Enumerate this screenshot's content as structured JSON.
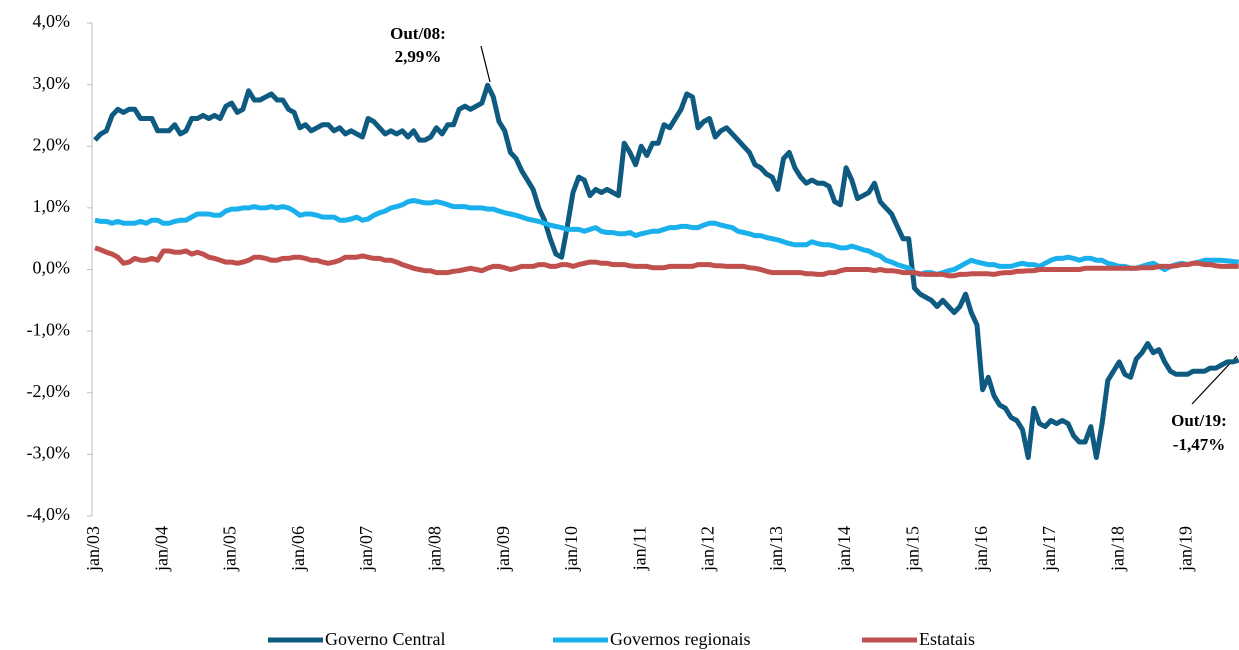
{
  "chart_data": {
    "type": "line",
    "categories": [
      "jan/03",
      null,
      null,
      null,
      null,
      null,
      null,
      null,
      null,
      null,
      null,
      null,
      "jan/04",
      null,
      null,
      null,
      null,
      null,
      null,
      null,
      null,
      null,
      null,
      null,
      "jan/05",
      null,
      null,
      null,
      null,
      null,
      null,
      null,
      null,
      null,
      null,
      null,
      "jan/06",
      null,
      null,
      null,
      null,
      null,
      null,
      null,
      null,
      null,
      null,
      null,
      "jan/07",
      null,
      null,
      null,
      null,
      null,
      null,
      null,
      null,
      null,
      null,
      null,
      "jan/08",
      null,
      null,
      null,
      null,
      null,
      null,
      null,
      null,
      null,
      null,
      null,
      "jan/09",
      null,
      null,
      null,
      null,
      null,
      null,
      null,
      null,
      null,
      null,
      null,
      "jan/10",
      null,
      null,
      null,
      null,
      null,
      null,
      null,
      null,
      null,
      null,
      null,
      "jan/11",
      null,
      null,
      null,
      null,
      null,
      null,
      null,
      null,
      null,
      null,
      null,
      "jan/12",
      null,
      null,
      null,
      null,
      null,
      null,
      null,
      null,
      null,
      null,
      null,
      "jan/13",
      null,
      null,
      null,
      null,
      null,
      null,
      null,
      null,
      null,
      null,
      null,
      "jan/14",
      null,
      null,
      null,
      null,
      null,
      null,
      null,
      null,
      null,
      null,
      null,
      "jan/15",
      null,
      null,
      null,
      null,
      null,
      null,
      null,
      null,
      null,
      null,
      null,
      "jan/16",
      null,
      null,
      null,
      null,
      null,
      null,
      null,
      null,
      null,
      null,
      null,
      "jan/17",
      null,
      null,
      null,
      null,
      null,
      null,
      null,
      null,
      null,
      null,
      null,
      "jan/18",
      null,
      null,
      null,
      null,
      null,
      null,
      null,
      null,
      null,
      null,
      null,
      "jan/19",
      null,
      null,
      null,
      null,
      null,
      null,
      null,
      null,
      null
    ],
    "series": [
      {
        "name": "Governo Central",
        "color": "#0e5a80",
        "values": [
          2.1,
          2.2,
          2.25,
          2.5,
          2.6,
          2.55,
          2.6,
          2.6,
          2.45,
          2.45,
          2.45,
          2.25,
          2.25,
          2.25,
          2.35,
          2.2,
          2.25,
          2.45,
          2.45,
          2.5,
          2.45,
          2.5,
          2.45,
          2.65,
          2.7,
          2.55,
          2.6,
          2.9,
          2.75,
          2.75,
          2.8,
          2.85,
          2.75,
          2.75,
          2.6,
          2.55,
          2.3,
          2.35,
          2.25,
          2.3,
          2.35,
          2.35,
          2.25,
          2.3,
          2.2,
          2.25,
          2.2,
          2.15,
          2.45,
          2.4,
          2.3,
          2.2,
          2.25,
          2.2,
          2.25,
          2.15,
          2.25,
          2.1,
          2.1,
          2.15,
          2.3,
          2.2,
          2.35,
          2.35,
          2.6,
          2.65,
          2.6,
          2.65,
          2.7,
          2.99,
          2.8,
          2.4,
          2.25,
          1.9,
          1.8,
          1.6,
          1.45,
          1.3,
          1.0,
          0.8,
          0.5,
          0.25,
          0.2,
          0.7,
          1.25,
          1.5,
          1.45,
          1.2,
          1.3,
          1.25,
          1.3,
          1.25,
          1.2,
          2.05,
          1.9,
          1.7,
          2.0,
          1.85,
          2.05,
          2.05,
          2.35,
          2.3,
          2.45,
          2.6,
          2.85,
          2.8,
          2.3,
          2.4,
          2.45,
          2.15,
          2.25,
          2.3,
          2.2,
          2.1,
          2.0,
          1.9,
          1.7,
          1.65,
          1.55,
          1.5,
          1.3,
          1.8,
          1.9,
          1.65,
          1.5,
          1.4,
          1.45,
          1.4,
          1.4,
          1.35,
          1.1,
          1.05,
          1.65,
          1.45,
          1.15,
          1.2,
          1.25,
          1.4,
          1.1,
          1.0,
          0.9,
          0.7,
          0.5,
          0.5,
          -0.3,
          -0.4,
          -0.45,
          -0.5,
          -0.6,
          -0.5,
          -0.6,
          -0.7,
          -0.6,
          -0.4,
          -0.7,
          -0.9,
          -1.95,
          -1.75,
          -2.05,
          -2.2,
          -2.25,
          -2.4,
          -2.45,
          -2.6,
          -3.05,
          -2.25,
          -2.5,
          -2.55,
          -2.45,
          -2.5,
          -2.45,
          -2.5,
          -2.7,
          -2.8,
          -2.8,
          -2.55,
          -3.05,
          -2.5,
          -1.8,
          -1.65,
          -1.5,
          -1.7,
          -1.75,
          -1.45,
          -1.35,
          -1.2,
          -1.35,
          -1.3,
          -1.5,
          -1.65,
          -1.7,
          -1.7,
          -1.7,
          -1.65,
          -1.65,
          -1.65,
          -1.6,
          -1.6,
          -1.55,
          -1.5,
          -1.5,
          -1.47
        ]
      },
      {
        "name": "Governos regionais",
        "color": "#1ab0ec",
        "values": [
          0.8,
          0.78,
          0.78,
          0.75,
          0.78,
          0.75,
          0.75,
          0.75,
          0.78,
          0.75,
          0.8,
          0.8,
          0.75,
          0.75,
          0.78,
          0.8,
          0.8,
          0.85,
          0.9,
          0.9,
          0.9,
          0.88,
          0.88,
          0.95,
          0.98,
          0.98,
          1.0,
          1.0,
          1.02,
          1.0,
          1.0,
          1.02,
          1.0,
          1.02,
          1.0,
          0.95,
          0.88,
          0.9,
          0.9,
          0.88,
          0.85,
          0.85,
          0.85,
          0.8,
          0.8,
          0.82,
          0.85,
          0.8,
          0.82,
          0.88,
          0.92,
          0.95,
          1.0,
          1.02,
          1.05,
          1.1,
          1.12,
          1.1,
          1.08,
          1.08,
          1.1,
          1.08,
          1.05,
          1.02,
          1.02,
          1.02,
          1.0,
          1.0,
          1.0,
          0.98,
          0.98,
          0.95,
          0.92,
          0.9,
          0.88,
          0.85,
          0.82,
          0.8,
          0.78,
          0.75,
          0.72,
          0.7,
          0.68,
          0.65,
          0.65,
          0.65,
          0.62,
          0.65,
          0.68,
          0.62,
          0.6,
          0.6,
          0.58,
          0.58,
          0.6,
          0.55,
          0.58,
          0.6,
          0.62,
          0.62,
          0.65,
          0.68,
          0.68,
          0.7,
          0.7,
          0.68,
          0.68,
          0.72,
          0.75,
          0.75,
          0.72,
          0.7,
          0.68,
          0.62,
          0.6,
          0.58,
          0.55,
          0.55,
          0.52,
          0.5,
          0.48,
          0.45,
          0.42,
          0.4,
          0.4,
          0.4,
          0.45,
          0.42,
          0.4,
          0.4,
          0.38,
          0.35,
          0.35,
          0.38,
          0.35,
          0.32,
          0.3,
          0.25,
          0.22,
          0.15,
          0.12,
          0.08,
          0.05,
          0.02,
          -0.05,
          -0.08,
          -0.05,
          -0.05,
          -0.08,
          -0.05,
          -0.02,
          0.0,
          0.05,
          0.1,
          0.15,
          0.12,
          0.1,
          0.08,
          0.08,
          0.05,
          0.05,
          0.05,
          0.08,
          0.1,
          0.08,
          0.08,
          0.05,
          0.1,
          0.15,
          0.18,
          0.18,
          0.2,
          0.18,
          0.15,
          0.18,
          0.18,
          0.15,
          0.15,
          0.1,
          0.08,
          0.05,
          0.05,
          0.02,
          0.02,
          0.05,
          0.08,
          0.1,
          0.05,
          0.0,
          0.05,
          0.08,
          0.1,
          0.08,
          0.1,
          0.12,
          0.15,
          0.15,
          0.15,
          0.15,
          0.14,
          0.13,
          0.12
        ]
      },
      {
        "name": "Estatais",
        "color": "#c0504d",
        "values": [
          0.35,
          0.32,
          0.28,
          0.25,
          0.2,
          0.1,
          0.12,
          0.18,
          0.15,
          0.15,
          0.18,
          0.15,
          0.3,
          0.3,
          0.28,
          0.28,
          0.3,
          0.25,
          0.28,
          0.25,
          0.2,
          0.18,
          0.15,
          0.12,
          0.12,
          0.1,
          0.12,
          0.15,
          0.2,
          0.2,
          0.18,
          0.15,
          0.15,
          0.18,
          0.18,
          0.2,
          0.2,
          0.18,
          0.15,
          0.15,
          0.12,
          0.1,
          0.12,
          0.15,
          0.2,
          0.2,
          0.2,
          0.22,
          0.2,
          0.18,
          0.18,
          0.15,
          0.15,
          0.12,
          0.08,
          0.05,
          0.02,
          0.0,
          -0.02,
          -0.02,
          -0.05,
          -0.05,
          -0.05,
          -0.03,
          -0.02,
          0.0,
          0.02,
          0.0,
          -0.02,
          0.02,
          0.05,
          0.05,
          0.03,
          0.0,
          0.02,
          0.05,
          0.05,
          0.05,
          0.08,
          0.08,
          0.05,
          0.05,
          0.08,
          0.08,
          0.05,
          0.08,
          0.1,
          0.12,
          0.12,
          0.1,
          0.1,
          0.08,
          0.08,
          0.08,
          0.06,
          0.05,
          0.05,
          0.05,
          0.03,
          0.03,
          0.03,
          0.05,
          0.05,
          0.05,
          0.05,
          0.05,
          0.08,
          0.08,
          0.08,
          0.06,
          0.06,
          0.05,
          0.05,
          0.05,
          0.05,
          0.03,
          0.02,
          0.0,
          -0.03,
          -0.05,
          -0.05,
          -0.05,
          -0.05,
          -0.05,
          -0.05,
          -0.07,
          -0.07,
          -0.08,
          -0.08,
          -0.05,
          -0.05,
          -0.02,
          0.0,
          0.0,
          0.0,
          0.0,
          0.0,
          -0.02,
          0.0,
          -0.02,
          -0.02,
          -0.03,
          -0.05,
          -0.05,
          -0.05,
          -0.07,
          -0.08,
          -0.08,
          -0.08,
          -0.08,
          -0.1,
          -0.1,
          -0.08,
          -0.08,
          -0.07,
          -0.07,
          -0.07,
          -0.07,
          -0.08,
          -0.06,
          -0.05,
          -0.05,
          -0.03,
          -0.03,
          -0.02,
          -0.02,
          0.0,
          0.0,
          0.0,
          0.0,
          0.0,
          0.0,
          0.0,
          0.0,
          0.02,
          0.02,
          0.02,
          0.02,
          0.02,
          0.02,
          0.02,
          0.02,
          0.02,
          0.02,
          0.03,
          0.03,
          0.03,
          0.05,
          0.05,
          0.05,
          0.06,
          0.08,
          0.08,
          0.1,
          0.1,
          0.08,
          0.08,
          0.06,
          0.05,
          0.05,
          0.05,
          0.05
        ]
      }
    ],
    "ylim": [
      -4,
      4
    ],
    "yticks": [
      {
        "value": -4,
        "label": "-4,0%"
      },
      {
        "value": -3,
        "label": "-3,0%"
      },
      {
        "value": -2,
        "label": "-2,0%"
      },
      {
        "value": -1,
        "label": "-1,0%"
      },
      {
        "value": 0,
        "label": "0,0%"
      },
      {
        "value": 1,
        "label": "1,0%"
      },
      {
        "value": 2,
        "label": "2,0%"
      },
      {
        "value": 3,
        "label": "3,0%"
      },
      {
        "value": 4,
        "label": "4,0%"
      }
    ],
    "annotations": [
      [
        "Out/08:",
        "2,99%"
      ],
      [
        "Out/19:",
        "-1,47%"
      ]
    ],
    "legend": "bottom"
  }
}
